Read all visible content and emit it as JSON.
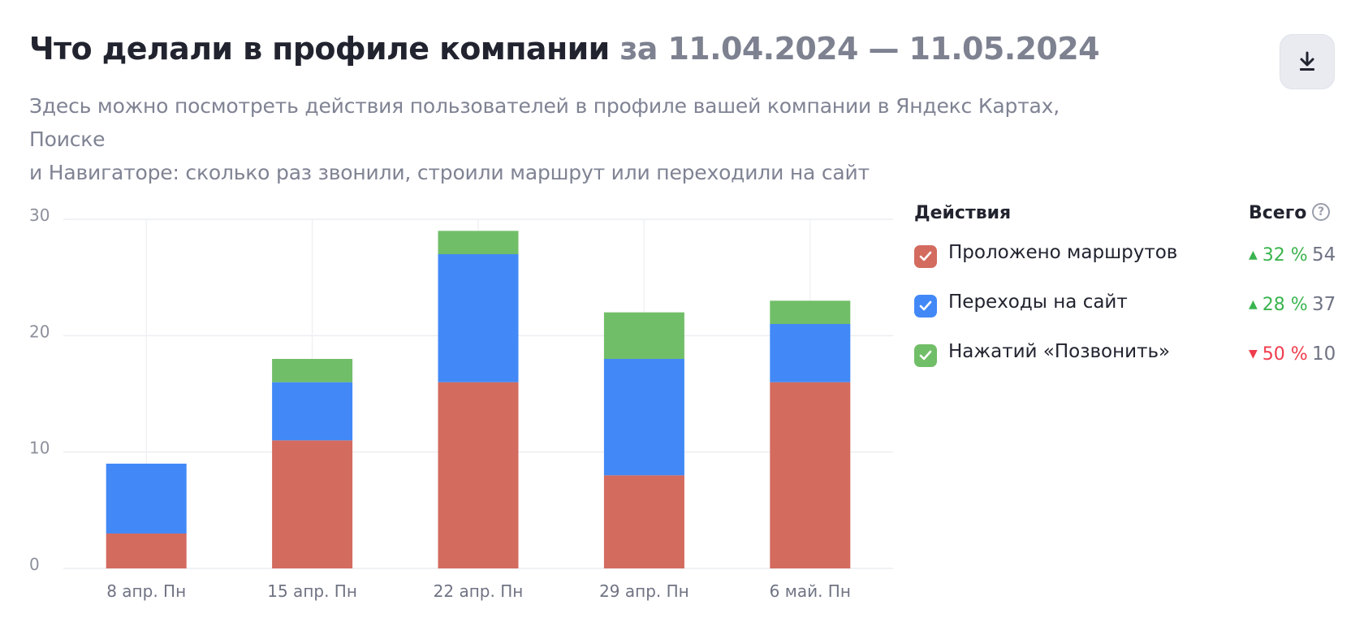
{
  "header": {
    "title_main": "Что делали в профиле компании",
    "title_period": "за 11.04.2024 — 11.05.2024",
    "subtitle_line1": "Здесь можно посмотреть действия пользователей в профиле вашей компании в Яндекс Картах, Поиске",
    "subtitle_line2": "и Навигаторе: сколько раз звонили, строили маршрут или переходили на сайт",
    "download_icon": "download-icon"
  },
  "legend": {
    "actions_header": "Действия",
    "total_header": "Всего",
    "help_icon": "question-circle-icon",
    "help_glyph": "?",
    "items": [
      {
        "label": "Проложено маршрутов",
        "color": "#d36b5f",
        "checked": true,
        "trend": "up",
        "delta": "32 %",
        "delta_color": "#3ab44e",
        "total": "54"
      },
      {
        "label": "Переходы на сайт",
        "color": "#4289f7",
        "checked": true,
        "trend": "up",
        "delta": "28 %",
        "delta_color": "#3ab44e",
        "total": "37"
      },
      {
        "label": "Нажатий «Позвонить»",
        "color": "#71be68",
        "checked": true,
        "trend": "down",
        "delta": "50 %",
        "delta_color": "#ef3b4b",
        "total": "10"
      }
    ]
  },
  "chart_data": {
    "type": "bar",
    "stacked": true,
    "title": "",
    "xlabel": "",
    "ylabel": "",
    "categories": [
      "8 апр. Пн",
      "15 апр. Пн",
      "22 апр. Пн",
      "29 апр. Пн",
      "6 май. Пн"
    ],
    "series": [
      {
        "name": "Проложено маршрутов",
        "color": "#d36b5f",
        "values": [
          3,
          11,
          16,
          8,
          16
        ]
      },
      {
        "name": "Переходы на сайт",
        "color": "#4289f7",
        "values": [
          6,
          5,
          11,
          10,
          5
        ]
      },
      {
        "name": "Нажатий «Позвонить»",
        "color": "#71be68",
        "values": [
          0,
          2,
          2,
          4,
          2
        ]
      }
    ],
    "ylim": [
      0,
      30
    ],
    "yticks": [
      "0",
      "10",
      "20",
      "30"
    ],
    "grid": true,
    "legend_position": "right"
  }
}
